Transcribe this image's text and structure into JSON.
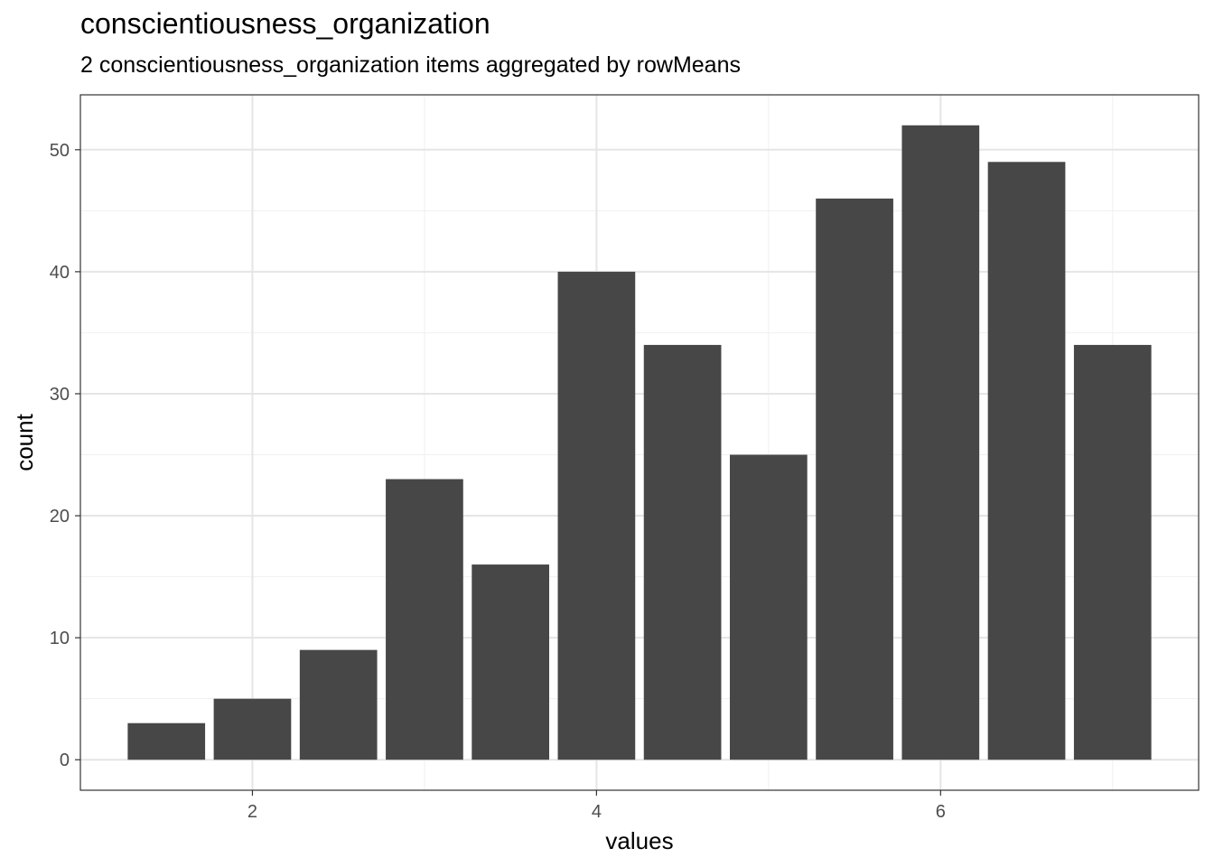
{
  "chart_data": {
    "type": "bar",
    "title": "conscientiousness_organization",
    "subtitle": "2 conscientiousness_organization items aggregated by rowMeans",
    "xlabel": "values",
    "ylabel": "count",
    "x": [
      1.5,
      2.0,
      2.5,
      3.0,
      3.5,
      4.0,
      4.5,
      5.0,
      5.5,
      6.0,
      6.5,
      7.0
    ],
    "values": [
      3,
      5,
      9,
      23,
      16,
      40,
      34,
      25,
      46,
      52,
      49,
      34
    ],
    "bar_width": 0.45,
    "xlim": [
      1.0,
      7.5
    ],
    "ylim": [
      -2.5,
      54.5
    ],
    "xticks": [
      2,
      4,
      6
    ],
    "yticks": [
      0,
      10,
      20,
      30,
      40,
      50
    ],
    "grid": true,
    "legend": "none",
    "colors": {
      "bar": "#474747",
      "grid_major": "#e5e5e5",
      "grid_minor": "#f0f0f0",
      "panel_border": "#333333"
    }
  }
}
